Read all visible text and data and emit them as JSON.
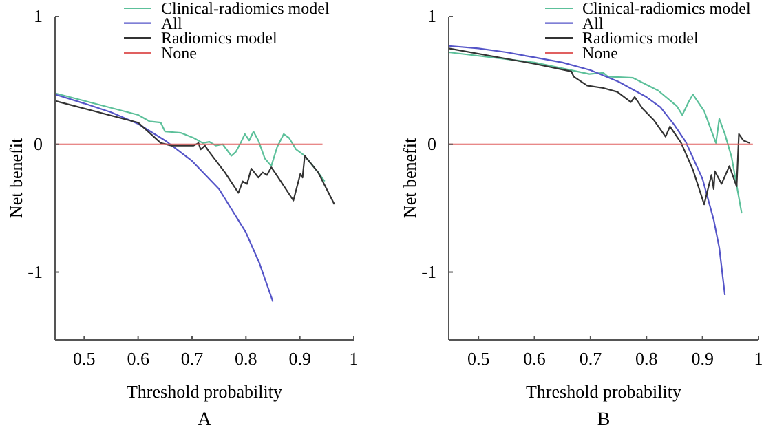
{
  "chart_data": [
    {
      "type": "line",
      "xlabel": "Threshold probability",
      "ylabel": "Net benefit",
      "annotations": [
        "A"
      ],
      "xlim": [
        0.446,
        1
      ],
      "xticks": [
        0.5,
        0.6,
        0.7,
        0.8,
        0.9,
        1
      ],
      "ylim": [
        -1.53,
        1
      ],
      "yticks": [
        -1,
        0,
        1
      ],
      "legend": "top right",
      "grid": false,
      "series": [
        {
          "name": "Clinical-radiomics model",
          "color": "#5cc09a",
          "x": [
            0.446,
            0.6,
            0.621,
            0.642,
            0.65,
            0.679,
            0.703,
            0.72,
            0.732,
            0.744,
            0.757,
            0.773,
            0.781,
            0.79,
            0.798,
            0.806,
            0.814,
            0.823,
            0.835,
            0.847,
            0.858,
            0.87,
            0.88,
            0.893,
            0.909,
            0.934,
            0.946
          ],
          "values": [
            0.4,
            0.23,
            0.18,
            0.17,
            0.1,
            0.09,
            0.05,
            0.01,
            0.02,
            -0.01,
            0,
            -0.09,
            -0.06,
            0.01,
            0.08,
            0.03,
            0.1,
            0.03,
            -0.11,
            -0.17,
            -0.02,
            0.08,
            0.05,
            -0.04,
            -0.09,
            -0.22,
            -0.29
          ]
        },
        {
          "name": "All",
          "color": "#5555c8",
          "x": [
            0.446,
            0.5,
            0.55,
            0.6,
            0.65,
            0.7,
            0.75,
            0.8,
            0.825,
            0.85
          ],
          "values": [
            0.39,
            0.32,
            0.25,
            0.16,
            0.03,
            -0.13,
            -0.35,
            -0.69,
            -0.93,
            -1.23
          ]
        },
        {
          "name": "Radiomics model",
          "color": "#333333",
          "x": [
            0.446,
            0.6,
            0.642,
            0.662,
            0.703,
            0.712,
            0.716,
            0.724,
            0.732,
            0.761,
            0.786,
            0.794,
            0.802,
            0.81,
            0.823,
            0.831,
            0.839,
            0.847,
            0.86,
            0.888,
            0.901,
            0.905,
            0.909,
            0.934,
            0.964
          ],
          "values": [
            0.34,
            0.17,
            0.01,
            -0.01,
            -0.01,
            0.01,
            -0.04,
            -0.01,
            -0.06,
            -0.22,
            -0.38,
            -0.29,
            -0.31,
            -0.19,
            -0.26,
            -0.22,
            -0.24,
            -0.18,
            -0.26,
            -0.44,
            -0.23,
            -0.26,
            -0.09,
            -0.22,
            -0.47
          ]
        },
        {
          "name": "None",
          "color": "#e06060",
          "x": [
            0.446,
            0.942
          ],
          "values": [
            0,
            0
          ]
        }
      ]
    },
    {
      "type": "line",
      "xlabel": "Threshold probability",
      "ylabel": "Net benefit",
      "annotations": [
        "B"
      ],
      "xlim": [
        0.447,
        1
      ],
      "xticks": [
        0.5,
        0.6,
        0.7,
        0.8,
        0.9,
        1
      ],
      "ylim": [
        -1.53,
        1
      ],
      "yticks": [
        -1,
        0,
        1
      ],
      "legend": "top right",
      "grid": false,
      "series": [
        {
          "name": "Clinical-radiomics model",
          "color": "#5cc09a",
          "x": [
            0.447,
            0.6,
            0.698,
            0.723,
            0.731,
            0.776,
            0.821,
            0.854,
            0.864,
            0.875,
            0.883,
            0.903,
            0.924,
            0.93,
            0.94,
            0.952,
            0.97
          ],
          "values": [
            0.72,
            0.64,
            0.55,
            0.56,
            0.53,
            0.52,
            0.42,
            0.3,
            0.23,
            0.33,
            0.39,
            0.26,
            0.01,
            0.2,
            0.08,
            -0.1,
            -0.54
          ]
        },
        {
          "name": "All",
          "color": "#5555c8",
          "x": [
            0.447,
            0.5,
            0.55,
            0.6,
            0.65,
            0.7,
            0.75,
            0.8,
            0.825,
            0.85,
            0.87,
            0.9,
            0.92,
            0.93,
            0.94
          ],
          "values": [
            0.77,
            0.75,
            0.72,
            0.68,
            0.64,
            0.58,
            0.49,
            0.37,
            0.29,
            0.15,
            0.02,
            -0.27,
            -0.59,
            -0.81,
            -1.18
          ]
        },
        {
          "name": "Radiomics model",
          "color": "#333333",
          "x": [
            0.447,
            0.6,
            0.666,
            0.67,
            0.694,
            0.723,
            0.748,
            0.772,
            0.779,
            0.793,
            0.813,
            0.834,
            0.842,
            0.862,
            0.883,
            0.903,
            0.916,
            0.92,
            0.922,
            0.934,
            0.948,
            0.961,
            0.965,
            0.973,
            0.985
          ],
          "values": [
            0.75,
            0.63,
            0.57,
            0.53,
            0.46,
            0.44,
            0.41,
            0.33,
            0.37,
            0.28,
            0.19,
            0.06,
            0.14,
            0.01,
            -0.2,
            -0.47,
            -0.24,
            -0.35,
            -0.21,
            -0.31,
            -0.17,
            -0.33,
            0.08,
            0.03,
            0.01
          ]
        },
        {
          "name": "None",
          "color": "#e06060",
          "x": [
            0.447,
            0.99
          ],
          "values": [
            0,
            0
          ]
        }
      ]
    }
  ]
}
